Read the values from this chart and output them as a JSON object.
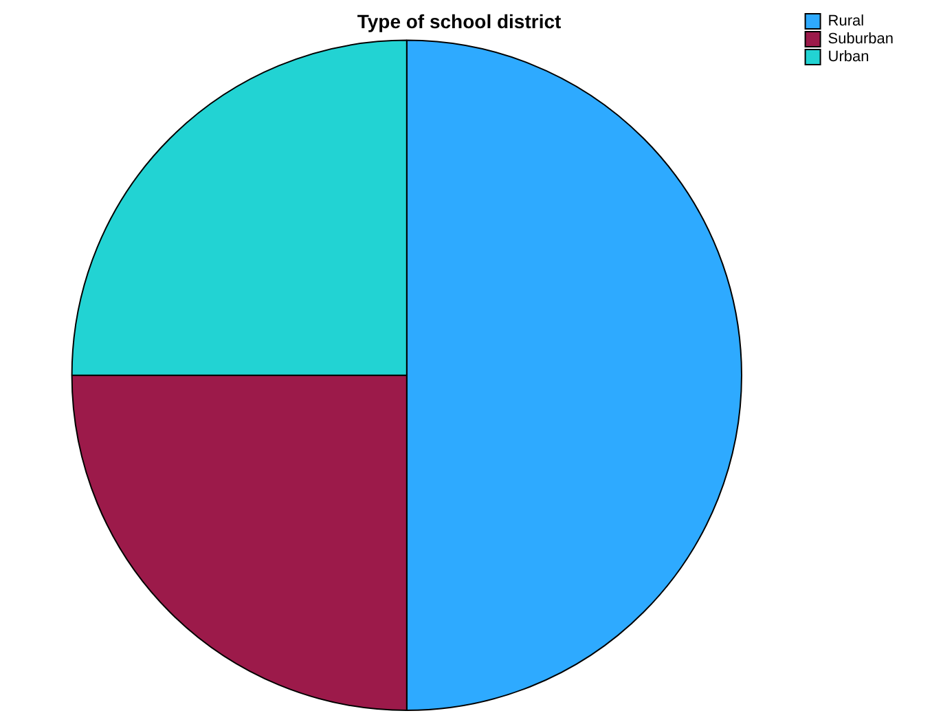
{
  "chart_data": {
    "type": "pie",
    "title": "Type of school district",
    "categories": [
      "Rural",
      "Suburban",
      "Urban"
    ],
    "values": [
      50,
      25,
      25
    ],
    "colors": [
      "#2eaaff",
      "#9c1a4a",
      "#22d3d3"
    ],
    "legend": "top right"
  }
}
